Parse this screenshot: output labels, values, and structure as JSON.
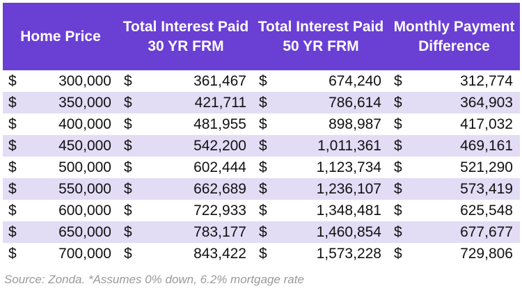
{
  "chart_data": {
    "type": "table",
    "columns": [
      "Home Price",
      "Total Interest Paid 30 YR FRM",
      "Total Interest Paid 50 YR FRM",
      "Monthly Payment Difference"
    ],
    "currency_symbol": "$",
    "rows": [
      [
        "300,000",
        "361,467",
        "674,240",
        "312,774"
      ],
      [
        "350,000",
        "421,711",
        "786,614",
        "364,903"
      ],
      [
        "400,000",
        "481,955",
        "898,987",
        "417,032"
      ],
      [
        "450,000",
        "542,200",
        "1,011,361",
        "469,161"
      ],
      [
        "500,000",
        "602,444",
        "1,123,734",
        "521,290"
      ],
      [
        "550,000",
        "662,689",
        "1,236,107",
        "573,419"
      ],
      [
        "600,000",
        "722,933",
        "1,348,481",
        "625,548"
      ],
      [
        "650,000",
        "783,177",
        "1,460,854",
        "677,677"
      ],
      [
        "700,000",
        "843,422",
        "1,573,228",
        "729,806"
      ]
    ],
    "source": "Source: Zonda. *Assumes 0% down, 6.2% mortgage rate",
    "colors": {
      "header_bg": "#6a3fd4",
      "header_text": "#ffffff",
      "stripe": "#e2dcf5",
      "source_text": "#9a9a9a"
    }
  }
}
